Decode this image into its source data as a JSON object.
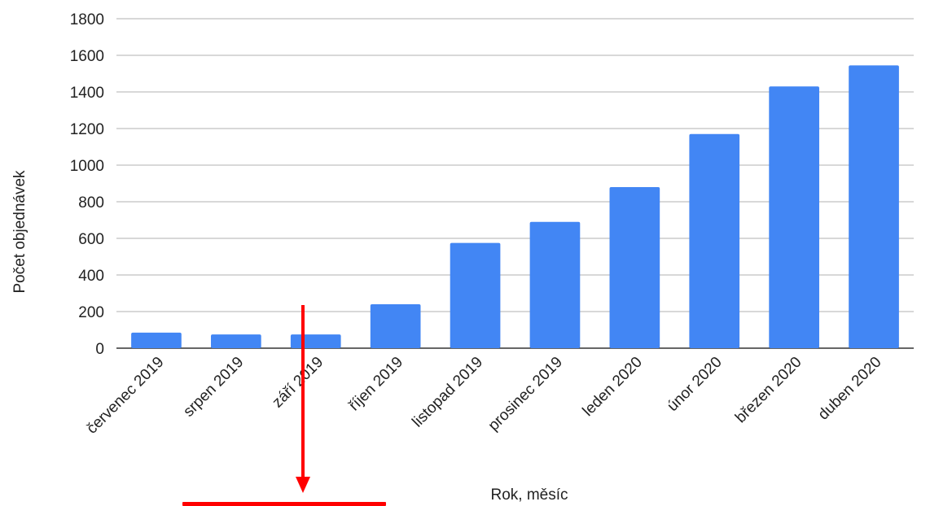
{
  "chart_data": {
    "type": "bar",
    "title": "",
    "xlabel": "Rok, měsíc",
    "ylabel": "Počet objednávek",
    "categories": [
      "červenec 2019",
      "srpen 2019",
      "září 2019",
      "říjen 2019",
      "listopad 2019",
      "prosinec 2019",
      "leden 2020",
      "únor 2020",
      "březen 2020",
      "duben 2020"
    ],
    "values": [
      85,
      75,
      75,
      240,
      575,
      690,
      880,
      1170,
      1430,
      1545
    ],
    "ylim": [
      0,
      1800
    ],
    "yticks": [
      "0",
      "200",
      "400",
      "600",
      "800",
      "1000",
      "1200",
      "1400",
      "1600",
      "1800"
    ],
    "grid": true,
    "bar_color": "#4286f4"
  },
  "annotation": {
    "arrow_color": "#ff0000",
    "text_color": "#ff0000",
    "target_category": "září 2019"
  }
}
